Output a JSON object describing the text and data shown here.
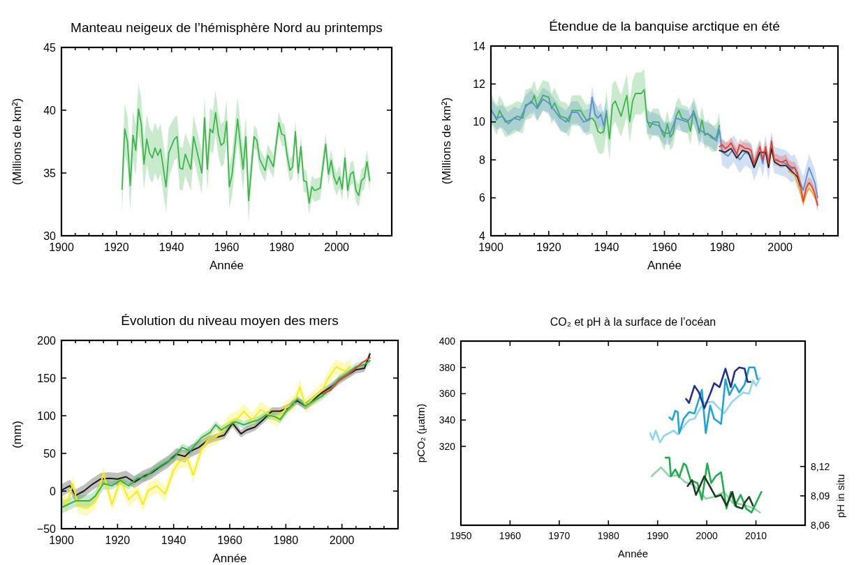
{
  "chart_data": [
    {
      "type": "line",
      "title": "Manteau neigeux de l’hémisphère Nord au printemps",
      "xlabel": "Année",
      "ylabel": "(Millions de km²)",
      "xlim": [
        1900,
        2020
      ],
      "ylim": [
        30,
        45
      ],
      "xticks": [
        1900,
        {
          "value": 1905,
          "label": null
        },
        {
          "value": 1910,
          "label": null
        },
        {
          "value": 1915,
          "label": null
        },
        1920,
        {
          "value": 1925,
          "label": null
        },
        {
          "value": 1930,
          "label": null
        },
        {
          "value": 1935,
          "label": null
        },
        1940,
        {
          "value": 1945,
          "label": null
        },
        {
          "value": 1950,
          "label": null
        },
        {
          "value": 1955,
          "label": null
        },
        1960,
        {
          "value": 1965,
          "label": null
        },
        {
          "value": 1970,
          "label": null
        },
        {
          "value": 1975,
          "label": null
        },
        1980,
        {
          "value": 1985,
          "label": null
        },
        {
          "value": 1990,
          "label": null
        },
        {
          "value": 1995,
          "label": null
        },
        2000,
        {
          "value": 2005,
          "label": null
        },
        {
          "value": 2010,
          "label": null
        },
        {
          "value": 2015,
          "label": null
        }
      ],
      "yticks": [
        30,
        35,
        40,
        45
      ],
      "series": [
        {
          "color": "#3db54a",
          "x": [
            1922,
            1923,
            1924,
            1925,
            1926,
            1927,
            1928,
            1929,
            1930,
            1931,
            1932,
            1933,
            1934,
            1935,
            1936,
            1938,
            1939,
            1941,
            1942,
            1943,
            1944,
            1945,
            1947,
            1948,
            1950,
            1951,
            1952,
            1953,
            1954,
            1955,
            1956,
            1957,
            1958,
            1959,
            1960,
            1961,
            1962,
            1964,
            1966,
            1967,
            1968,
            1970,
            1971,
            1972,
            1974,
            1975,
            1977,
            1979,
            1980,
            1981,
            1982,
            1983,
            1984,
            1985,
            1986,
            1987,
            1988,
            1989,
            1990,
            1991,
            1992,
            1994,
            1996,
            1997,
            1998,
            1999,
            2000,
            2001,
            2002,
            2003,
            2004,
            2005,
            2006,
            2007,
            2008,
            2009,
            2010,
            2011,
            2012
          ],
          "values": [
            33.7,
            38.5,
            37.5,
            34.0,
            38.0,
            36.8,
            40.1,
            38.9,
            35.7,
            37.7,
            36.6,
            36.2,
            37.0,
            36.4,
            36.9,
            33.9,
            36.6,
            37.7,
            37.9,
            35.4,
            35.3,
            36.5,
            35.3,
            37.9,
            36.0,
            35.0,
            39.4,
            35.3,
            38.5,
            38.2,
            39.8,
            38.1,
            37.2,
            37.4,
            39.1,
            33.9,
            34.9,
            39.3,
            35.3,
            37.9,
            32.8,
            37.9,
            37.6,
            36.1,
            35.2,
            36.4,
            35.5,
            39.0,
            38.1,
            38.0,
            36.4,
            35.2,
            35.5,
            38.3,
            35.0,
            37.1,
            34.4,
            34.3,
            32.6,
            33.9,
            33.6,
            33.8,
            37.3,
            34.9,
            36.0,
            34.7,
            34.1,
            34.7,
            33.7,
            36.2,
            33.6,
            34.9,
            35.1,
            33.6,
            33.2,
            34.4,
            34.6,
            35.9,
            34.4
          ],
          "lower": [
            31.7,
            36.5,
            35.5,
            32.0,
            36.0,
            34.8,
            38.1,
            36.9,
            33.7,
            35.7,
            34.6,
            34.2,
            35.0,
            34.4,
            34.9,
            31.9,
            34.6,
            36.0,
            36.2,
            33.7,
            33.6,
            34.8,
            33.6,
            36.2,
            34.3,
            33.3,
            37.7,
            33.6,
            36.8,
            36.5,
            38.1,
            36.4,
            35.5,
            35.7,
            37.4,
            32.2,
            33.2,
            37.6,
            33.6,
            36.2,
            31.1,
            37.0,
            36.7,
            35.2,
            34.3,
            35.5,
            34.6,
            38.1,
            37.2,
            37.1,
            35.5,
            34.3,
            34.6,
            37.4,
            34.1,
            36.2,
            33.5,
            33.4,
            31.7,
            33.0,
            32.7,
            32.9,
            36.4,
            34.0,
            35.1,
            33.8,
            33.2,
            33.8,
            32.8,
            35.3,
            32.7,
            34.0,
            34.2,
            32.7,
            32.3,
            33.5,
            33.7,
            35.0,
            33.5
          ],
          "upper": [
            35.7,
            40.5,
            39.5,
            36.0,
            40.0,
            38.8,
            42.1,
            40.9,
            37.7,
            39.7,
            38.6,
            38.2,
            39.0,
            38.4,
            38.9,
            35.9,
            38.6,
            39.4,
            39.6,
            37.1,
            37.0,
            38.2,
            37.0,
            39.6,
            37.7,
            36.7,
            41.1,
            37.0,
            40.2,
            39.9,
            41.5,
            39.8,
            38.9,
            39.1,
            40.8,
            35.6,
            36.6,
            41.0,
            37.0,
            39.6,
            34.5,
            38.8,
            38.5,
            37.0,
            36.1,
            37.3,
            36.4,
            39.9,
            39.0,
            38.9,
            37.3,
            36.1,
            36.4,
            39.2,
            35.9,
            38.0,
            35.3,
            35.2,
            33.5,
            34.8,
            34.5,
            34.7,
            38.2,
            35.8,
            36.9,
            35.6,
            35.0,
            35.6,
            34.6,
            37.1,
            34.5,
            35.8,
            36.0,
            34.5,
            34.1,
            35.3,
            35.5,
            36.8,
            35.3
          ]
        }
      ]
    },
    {
      "type": "line",
      "title": "Étendue de la banquise arctique en été",
      "xlabel": "Année",
      "ylabel": "(Millions de km²)",
      "xlim": [
        1900,
        2020
      ],
      "ylim": [
        4,
        14
      ],
      "xticks": [
        1900,
        {
          "value": 1905,
          "label": null
        },
        {
          "value": 1910,
          "label": null
        },
        {
          "value": 1915,
          "label": null
        },
        1920,
        {
          "value": 1925,
          "label": null
        },
        {
          "value": 1930,
          "label": null
        },
        {
          "value": 1935,
          "label": null
        },
        1940,
        {
          "value": 1945,
          "label": null
        },
        {
          "value": 1950,
          "label": null
        },
        {
          "value": 1955,
          "label": null
        },
        1960,
        {
          "value": 1965,
          "label": null
        },
        {
          "value": 1970,
          "label": null
        },
        {
          "value": 1975,
          "label": null
        },
        1980,
        {
          "value": 1985,
          "label": null
        },
        {
          "value": 1990,
          "label": null
        },
        {
          "value": 1995,
          "label": null
        },
        2000,
        {
          "value": 2005,
          "label": null
        },
        {
          "value": 2010,
          "label": null
        },
        {
          "value": 2015,
          "label": null
        }
      ],
      "yticks": [
        4,
        6,
        8,
        10,
        12,
        14
      ],
      "series": [
        {
          "color": "#3db54a",
          "x": [
            1900,
            1902,
            1903,
            1905,
            1907,
            1909,
            1911,
            1912,
            1914,
            1915,
            1916,
            1918,
            1920,
            1921,
            1922,
            1924,
            1926,
            1927,
            1928,
            1930,
            1931,
            1933,
            1935,
            1936,
            1937,
            1938,
            1939,
            1940,
            1941,
            1942,
            1943,
            1945,
            1947,
            1948,
            1949,
            1950,
            1952,
            1953,
            1954,
            1955,
            1956,
            1958,
            1959,
            1960,
            1961,
            1962,
            1963,
            1964,
            1965,
            1966,
            1968,
            1969,
            1970,
            1971,
            1972,
            1973,
            1974,
            1975,
            1976,
            1977,
            1978,
            1979
          ],
          "values": [
            10.7,
            10.1,
            10.6,
            10.0,
            10.1,
            10.3,
            10.2,
            10.9,
            11.0,
            11.4,
            10.8,
            11.4,
            11.3,
            10.7,
            11.0,
            10.3,
            10.2,
            10.0,
            10.6,
            10.6,
            10.6,
            10.1,
            10.2,
            10.0,
            9.5,
            9.4,
            9.5,
            10.5,
            9.1,
            10.9,
            11.1,
            10.3,
            11.4,
            10.0,
            11.1,
            11.5,
            11.5,
            11.7,
            10.1,
            9.7,
            10.0,
            10.0,
            9.5,
            9.2,
            9.9,
            9.2,
            9.4,
            10.3,
            10.6,
            10.2,
            10.1,
            9.5,
            10.6,
            10.2,
            9.4,
            10.1,
            9.3,
            9.4,
            9.2,
            9.1,
            9.2,
            9.8
          ],
          "lower": [
            9.9,
            9.3,
            9.8,
            9.2,
            9.3,
            9.5,
            9.4,
            10.1,
            10.2,
            10.6,
            10.0,
            10.6,
            10.5,
            9.9,
            10.2,
            9.5,
            9.4,
            9.2,
            9.8,
            9.8,
            9.8,
            9.3,
            9.4,
            8.9,
            8.4,
            8.3,
            8.4,
            9.4,
            8.0,
            9.8,
            10.0,
            9.2,
            10.3,
            8.9,
            10.0,
            10.4,
            10.4,
            10.6,
            9.4,
            9.0,
            9.3,
            9.3,
            8.8,
            8.5,
            9.2,
            8.5,
            8.7,
            9.6,
            9.9,
            9.5,
            9.4,
            8.8,
            9.9,
            9.5,
            8.7,
            9.4,
            8.6,
            8.7,
            8.5,
            8.4,
            8.5,
            9.1
          ],
          "upper": [
            11.5,
            10.9,
            11.4,
            10.8,
            10.9,
            11.1,
            11.0,
            11.7,
            11.8,
            12.2,
            11.6,
            12.2,
            12.1,
            11.5,
            11.8,
            11.1,
            11.0,
            10.8,
            11.4,
            11.4,
            11.4,
            10.9,
            11.0,
            11.1,
            10.6,
            10.5,
            10.6,
            11.6,
            10.2,
            12.0,
            12.2,
            11.4,
            12.5,
            11.1,
            12.2,
            12.6,
            12.6,
            12.8,
            10.8,
            10.4,
            10.7,
            10.7,
            10.2,
            9.9,
            10.6,
            9.9,
            10.1,
            11.0,
            11.3,
            10.9,
            10.8,
            10.2,
            11.3,
            10.9,
            10.1,
            10.8,
            10.0,
            10.1,
            9.9,
            9.8,
            9.9,
            10.5
          ]
        },
        {
          "color": "#5b8ed6",
          "x": [
            1900,
            1902,
            1904,
            1906,
            1908,
            1910,
            1912,
            1914,
            1916,
            1918,
            1920,
            1922,
            1924,
            1926,
            1928,
            1930,
            1932,
            1934,
            1935,
            1936,
            1937,
            1938,
            1939,
            1940,
            1941,
            1954,
            1956,
            1958,
            1960,
            1962,
            1964,
            1966,
            1968,
            1970,
            1972,
            1974,
            1976,
            1978,
            1979,
            1980,
            1982,
            1984,
            1986,
            1988,
            1990,
            1991,
            1993,
            1994,
            1995,
            1996,
            1997,
            1998,
            2000,
            2002,
            2004,
            2005,
            2007,
            2008,
            2010,
            2012,
            2013
          ],
          "values": [
            10.6,
            10.2,
            10.3,
            9.9,
            10.2,
            10.1,
            10.8,
            11.1,
            10.7,
            11.2,
            11.0,
            10.6,
            10.2,
            10.0,
            10.5,
            10.5,
            10.0,
            10.1,
            11.3,
            10.4,
            10.2,
            10.4,
            9.8,
            10.6,
            null,
            10.0,
            9.9,
            9.8,
            9.4,
            9.4,
            10.2,
            10.1,
            10.0,
            10.5,
            9.6,
            9.4,
            9.3,
            9.0,
            9.6,
            8.4,
            8.2,
            8.6,
            8.0,
            8.4,
            8.2,
            7.6,
            8.4,
            7.8,
            8.6,
            7.6,
            8.8,
            8.0,
            7.9,
            7.8,
            7.5,
            7.6,
            6.8,
            6.4,
            7.6,
            6.8,
            6.0
          ],
          "lower": [
            10.0,
            9.6,
            9.7,
            9.3,
            9.6,
            9.5,
            10.2,
            10.5,
            10.1,
            10.6,
            10.4,
            10.0,
            9.6,
            9.4,
            9.9,
            9.9,
            9.4,
            9.5,
            10.7,
            9.8,
            9.6,
            9.8,
            9.2,
            10.0,
            null,
            9.4,
            9.3,
            9.2,
            8.8,
            8.8,
            9.6,
            9.5,
            9.4,
            9.9,
            9.0,
            8.8,
            8.7,
            8.4,
            9.0,
            7.7,
            7.5,
            7.9,
            7.3,
            7.7,
            7.5,
            6.9,
            7.7,
            7.1,
            7.9,
            6.9,
            8.1,
            7.3,
            7.2,
            7.1,
            6.8,
            6.9,
            6.1,
            5.7,
            6.9,
            6.1,
            5.3
          ],
          "upper": [
            11.2,
            10.8,
            10.9,
            10.5,
            10.8,
            10.7,
            11.4,
            11.7,
            11.3,
            11.8,
            11.6,
            11.2,
            10.8,
            10.6,
            11.1,
            11.1,
            10.6,
            10.7,
            11.9,
            11.0,
            10.8,
            11.0,
            10.4,
            11.2,
            null,
            10.6,
            10.5,
            10.4,
            10.0,
            10.0,
            10.8,
            10.7,
            10.6,
            11.1,
            10.2,
            10.0,
            9.9,
            9.6,
            10.2,
            9.1,
            8.9,
            9.3,
            8.7,
            9.1,
            8.9,
            8.3,
            9.1,
            8.5,
            9.3,
            8.3,
            9.5,
            8.7,
            8.6,
            8.5,
            8.2,
            8.3,
            7.5,
            7.1,
            8.3,
            7.5,
            6.7
          ]
        },
        {
          "color": "#2a1e1a",
          "x": [
            1979,
            1981,
            1983,
            1985,
            1987,
            1989,
            1991,
            1993,
            1995,
            1996,
            1997,
            1998,
            2000,
            2002,
            2004,
            2006,
            2007
          ],
          "values": [
            8.5,
            8.4,
            8.6,
            8.1,
            8.5,
            8.4,
            7.6,
            8.4,
            8.4,
            7.6,
            8.6,
            7.9,
            7.7,
            7.7,
            7.4,
            7.1,
            6.6
          ]
        },
        {
          "color": "#f5a81e",
          "x": [
            2003,
            2004,
            2005,
            2006,
            2007,
            2008,
            2009,
            2010,
            2011,
            2012,
            2013
          ],
          "values": [
            7.4,
            7.3,
            7.2,
            6.8,
            6.3,
            5.7,
            6.2,
            6.5,
            6.3,
            6.0,
            5.7
          ]
        },
        {
          "color": "#e8412c",
          "x": [
            1979,
            1980,
            1981,
            1982,
            1983,
            1984,
            1985,
            1986,
            1987,
            1988,
            1989,
            1990,
            1991,
            1992,
            1993,
            1994,
            1995,
            1996,
            1997,
            1998,
            1999,
            2000,
            2001,
            2002,
            2003,
            2004,
            2005,
            2006,
            2007,
            2008,
            2009,
            2010,
            2011,
            2012,
            2013
          ],
          "values": [
            8.7,
            8.8,
            8.6,
            8.7,
            8.9,
            8.6,
            8.3,
            8.8,
            8.7,
            8.6,
            8.6,
            8.5,
            7.8,
            8.2,
            8.7,
            8.0,
            8.7,
            7.8,
            9.0,
            8.0,
            8.0,
            7.9,
            7.9,
            8.0,
            7.7,
            7.6,
            7.6,
            7.3,
            6.7,
            5.8,
            6.5,
            6.8,
            6.6,
            6.2,
            5.6
          ],
          "lower": [
            8.4,
            8.5,
            8.3,
            8.4,
            8.6,
            8.3,
            8.0,
            8.5,
            8.4,
            8.3,
            8.3,
            8.2,
            7.5,
            7.9,
            8.4,
            7.7,
            8.4,
            7.5,
            8.7,
            7.7,
            7.7,
            7.6,
            7.6,
            7.7,
            7.4,
            7.3,
            7.3,
            7.0,
            6.4,
            5.5,
            6.2,
            6.5,
            6.3,
            5.9,
            5.3
          ],
          "upper": [
            9.0,
            9.1,
            8.9,
            9.0,
            9.2,
            8.9,
            8.6,
            9.1,
            9.0,
            8.9,
            8.9,
            8.8,
            8.1,
            8.5,
            9.0,
            8.3,
            9.0,
            8.1,
            9.3,
            8.3,
            8.3,
            8.2,
            8.2,
            8.3,
            8.0,
            7.9,
            7.9,
            7.6,
            7.0,
            6.1,
            6.8,
            7.1,
            6.9,
            6.5,
            5.9
          ]
        }
      ]
    },
    {
      "type": "line",
      "title": "Évolution du niveau moyen des mers",
      "xlabel": "Année",
      "ylabel": "(mm)",
      "xlim": [
        1900,
        2020
      ],
      "ylim": [
        -50,
        200
      ],
      "xticks": [
        1900,
        {
          "value": 1905,
          "label": null
        },
        {
          "value": 1910,
          "label": null
        },
        {
          "value": 1915,
          "label": null
        },
        1920,
        {
          "value": 1925,
          "label": null
        },
        {
          "value": 1930,
          "label": null
        },
        {
          "value": 1935,
          "label": null
        },
        1940,
        {
          "value": 1945,
          "label": null
        },
        {
          "value": 1950,
          "label": null
        },
        {
          "value": 1955,
          "label": null
        },
        1960,
        {
          "value": 1965,
          "label": null
        },
        {
          "value": 1970,
          "label": null
        },
        {
          "value": 1975,
          "label": null
        },
        1980,
        {
          "value": 1985,
          "label": null
        },
        {
          "value": 1990,
          "label": null
        },
        {
          "value": 1995,
          "label": null
        },
        2000,
        {
          "value": 2005,
          "label": null
        },
        {
          "value": 2010,
          "label": null
        },
        {
          "value": 2015,
          "label": null
        }
      ],
      "yticks": [
        {
          "value": -50,
          "label": "−50"
        },
        0,
        50,
        100,
        150,
        200
      ],
      "series": [
        {
          "color": "#1a1a1a",
          "x": [
            1900,
            1903,
            1905,
            1908,
            1911,
            1914,
            1917,
            1920,
            1923,
            1926,
            1929,
            1932,
            1935,
            1938,
            1941,
            1944,
            1946,
            1949,
            1952,
            1955,
            1958,
            1961,
            1964,
            1966,
            1969,
            1972,
            1975,
            1978,
            1981,
            1984,
            1987,
            1990,
            1993,
            1996,
            1999,
            2002,
            2005,
            2008,
            2010
          ],
          "values": [
            1,
            7,
            -6,
            0,
            9,
            16,
            17,
            16,
            19,
            12,
            19,
            24,
            32,
            39,
            49,
            46,
            53,
            58,
            67,
            71,
            74,
            90,
            76,
            81,
            85,
            95,
            106,
            106,
            111,
            120,
            113,
            122,
            131,
            138,
            147,
            154,
            161,
            163,
            182
          ],
          "lower": [
            -7,
            -1,
            -14,
            -8,
            1,
            8,
            9,
            8,
            11,
            4,
            11,
            16,
            24,
            31,
            41,
            38,
            45,
            50,
            62,
            66,
            69,
            85,
            71,
            76,
            80,
            90,
            101,
            101,
            106,
            115,
            108,
            117,
            126,
            133,
            142,
            149,
            156,
            158,
            177
          ],
          "upper": [
            9,
            15,
            2,
            8,
            17,
            24,
            25,
            24,
            27,
            20,
            27,
            32,
            40,
            47,
            57,
            54,
            61,
            66,
            72,
            76,
            79,
            95,
            81,
            86,
            90,
            100,
            111,
            111,
            116,
            125,
            118,
            127,
            136,
            143,
            152,
            159,
            166,
            168,
            187
          ]
        },
        {
          "color": "#f7ec1a",
          "x": [
            1900,
            1902,
            1904,
            1906,
            1909,
            1912,
            1915,
            1918,
            1921,
            1924,
            1927,
            1929,
            1931,
            1934,
            1937,
            1940,
            1942,
            1945,
            1947,
            1950,
            1952,
            1955,
            1957,
            1960,
            1963,
            1965,
            1968,
            1971,
            1974,
            1977,
            1980,
            1983,
            1985,
            1987,
            1990,
            1993,
            1995,
            1998,
            2001,
            2003
          ],
          "values": [
            -9,
            -18,
            10,
            -20,
            -23,
            -15,
            23,
            -18,
            14,
            -11,
            0,
            -18,
            1,
            7,
            -4,
            28,
            39,
            42,
            21,
            56,
            67,
            71,
            78,
            92,
            97,
            106,
            94,
            108,
            102,
            95,
            110,
            117,
            138,
            113,
            124,
            134,
            149,
            165,
            159,
            166
          ],
          "lower": [
            -19,
            -28,
            0,
            -30,
            -33,
            -25,
            13,
            -28,
            4,
            -21,
            -10,
            -28,
            -9,
            -3,
            -14,
            18,
            29,
            32,
            11,
            46,
            57,
            61,
            68,
            82,
            87,
            96,
            84,
            98,
            92,
            85,
            100,
            107,
            128,
            103,
            114,
            124,
            139,
            155,
            149,
            156
          ],
          "upper": [
            1,
            -8,
            20,
            -10,
            -13,
            -5,
            33,
            -8,
            24,
            -1,
            10,
            -8,
            11,
            17,
            6,
            38,
            49,
            52,
            31,
            66,
            77,
            81,
            88,
            102,
            107,
            116,
            104,
            118,
            112,
            105,
            120,
            127,
            148,
            123,
            134,
            144,
            159,
            175,
            169,
            176
          ]
        },
        {
          "color": "#35b04a",
          "x": [
            1900,
            1905,
            1910,
            1912,
            1915,
            1918,
            1921,
            1924,
            1927,
            1930,
            1933,
            1936,
            1940,
            1943,
            1946,
            1948,
            1950,
            1953,
            1955,
            1957,
            1960,
            1962,
            1965,
            1968,
            1970,
            1973,
            1976,
            1978,
            1981,
            1984,
            1987,
            1990,
            1993,
            1996,
            1999,
            2002,
            2005,
            2008,
            2010
          ],
          "values": [
            -22,
            -13,
            -13,
            -7,
            10,
            7,
            14,
            7,
            17,
            19,
            28,
            35,
            44,
            58,
            53,
            63,
            71,
            78,
            88,
            81,
            88,
            92,
            88,
            92,
            94,
            101,
            99,
            95,
            110,
            122,
            113,
            120,
            126,
            136,
            149,
            156,
            165,
            168,
            173
          ],
          "lower": [
            -30,
            -21,
            -21,
            -15,
            2,
            2,
            9,
            2,
            12,
            14,
            23,
            30,
            39,
            53,
            48,
            58,
            66,
            73,
            83,
            76,
            83,
            87,
            83,
            87,
            89,
            96,
            94,
            90,
            105,
            117,
            108,
            115,
            121,
            131,
            144,
            151,
            160,
            163,
            168
          ],
          "upper": [
            -14,
            -5,
            -5,
            1,
            18,
            12,
            19,
            12,
            22,
            24,
            33,
            40,
            49,
            63,
            58,
            68,
            76,
            83,
            93,
            86,
            93,
            97,
            93,
            97,
            99,
            106,
            104,
            100,
            115,
            127,
            118,
            125,
            131,
            141,
            154,
            161,
            170,
            173,
            178
          ]
        },
        {
          "color": "#e8412c",
          "x": [
            1993,
            1996,
            1999,
            2002,
            2005,
            2007,
            2010
          ],
          "values": [
            129,
            134,
            147,
            154,
            163,
            170,
            177
          ]
        }
      ]
    },
    {
      "type": "line",
      "title": "CO₂ et pH à la surface de l’océan",
      "xlabel": "Année",
      "ylabel": "pCO₂ (µatm)",
      "y2label": "pH in situ",
      "xlim": [
        1950,
        2020
      ],
      "ylim": [
        260,
        400
      ],
      "y2lim": [
        8.06,
        8.248
      ],
      "xticks": [
        1950,
        1960,
        1970,
        1980,
        1990,
        2000,
        2010
      ],
      "yticks": [
        320,
        340,
        360,
        380,
        400
      ],
      "y2ticks": [
        {
          "value": 8.06,
          "label": "8,06"
        },
        {
          "value": 8.09,
          "label": "8,09"
        },
        {
          "value": 8.12,
          "label": "8,12"
        }
      ],
      "series": [
        {
          "color": "#8fd6ee",
          "x": [
            1988.5,
            1989.0,
            1989.6,
            1990.5,
            1991.3,
            1993.3,
            1994.1,
            1995.3,
            1996.4,
            1997.5,
            1998.7,
            1999.5,
            2001.2,
            2003.5,
            2005.2,
            2007.4,
            2008.6,
            2009.4,
            2010.0,
            2010.8
          ],
          "values": [
            330,
            325,
            332,
            323,
            328,
            332,
            329,
            335,
            340,
            341,
            349,
            353,
            354,
            345,
            354,
            361,
            360,
            370,
            366,
            372
          ]
        },
        {
          "color": "#1ba6d3",
          "x": [
            1992.4,
            1993.0,
            1993.6,
            1994.1,
            1994.4,
            1995.3,
            1996.4,
            1997.5,
            1999.0,
            1999.8,
            2000.7,
            2001.5,
            2002.9,
            2003.8,
            2004.6,
            2005.7,
            2006.6,
            2007.7,
            2008.6,
            2009.7,
            2010.3
          ],
          "values": [
            342,
            340,
            347,
            346,
            330,
            341,
            346,
            345,
            363,
            330,
            351,
            341,
            337,
            371,
            359,
            367,
            361,
            367,
            380,
            380,
            371
          ]
        },
        {
          "color": "#232f8e",
          "x": [
            1995.8,
            1996.4,
            1997.5,
            1998.4,
            1999.5,
            2000.7,
            2001.5,
            2002.6,
            2003.8,
            2004.9,
            2005.7,
            2006.6,
            2007.7,
            2008.3,
            2008.9
          ],
          "values": [
            356,
            353,
            366,
            361,
            349,
            360,
            368,
            365,
            379,
            365,
            377,
            380,
            379,
            369,
            369
          ]
        },
        {
          "color": "#92d3a2",
          "axis": "y2",
          "x": [
            1988.8,
            1989.6,
            1990.7,
            1992.4,
            1994.1,
            1995.6,
            1997.3,
            1998.7,
            1999.8,
            2001.5,
            2003.5,
            2005.2,
            2007.4,
            2009.7,
            2010.8
          ],
          "values": [
            8.11,
            8.114,
            8.119,
            8.11,
            8.111,
            8.104,
            8.101,
            8.094,
            8.087,
            8.089,
            8.094,
            8.083,
            8.081,
            8.077,
            8.073
          ]
        },
        {
          "color": "#1eae4c",
          "axis": "y2",
          "x": [
            1991.6,
            1992.4,
            1992.7,
            1993.6,
            1994.4,
            1995.3,
            1995.8,
            1996.7,
            1998.1,
            1999.0,
            2000.1,
            2000.9,
            2001.8,
            2002.9,
            2004.0,
            2004.9,
            2005.7,
            2006.9,
            2008.0,
            2009.1,
            2011.1
          ],
          "values": [
            8.129,
            8.129,
            8.11,
            8.117,
            8.109,
            8.123,
            8.121,
            8.106,
            8.103,
            8.086,
            8.123,
            8.103,
            8.11,
            8.114,
            8.077,
            8.094,
            8.08,
            8.091,
            8.077,
            8.073,
            8.094
          ]
        },
        {
          "color": "#1b3d1e",
          "axis": "y2",
          "x": [
            1996.1,
            1997.0,
            1997.8,
            1998.7,
            1999.5,
            2000.7,
            2001.8,
            2002.9,
            2004.0,
            2005.2,
            2006.0,
            2007.2,
            2007.7,
            2008.6,
            2009.4
          ],
          "values": [
            8.1,
            8.106,
            8.091,
            8.101,
            8.11,
            8.099,
            8.089,
            8.091,
            8.08,
            8.094,
            8.079,
            8.077,
            8.083,
            8.089,
            8.08
          ]
        }
      ]
    }
  ]
}
